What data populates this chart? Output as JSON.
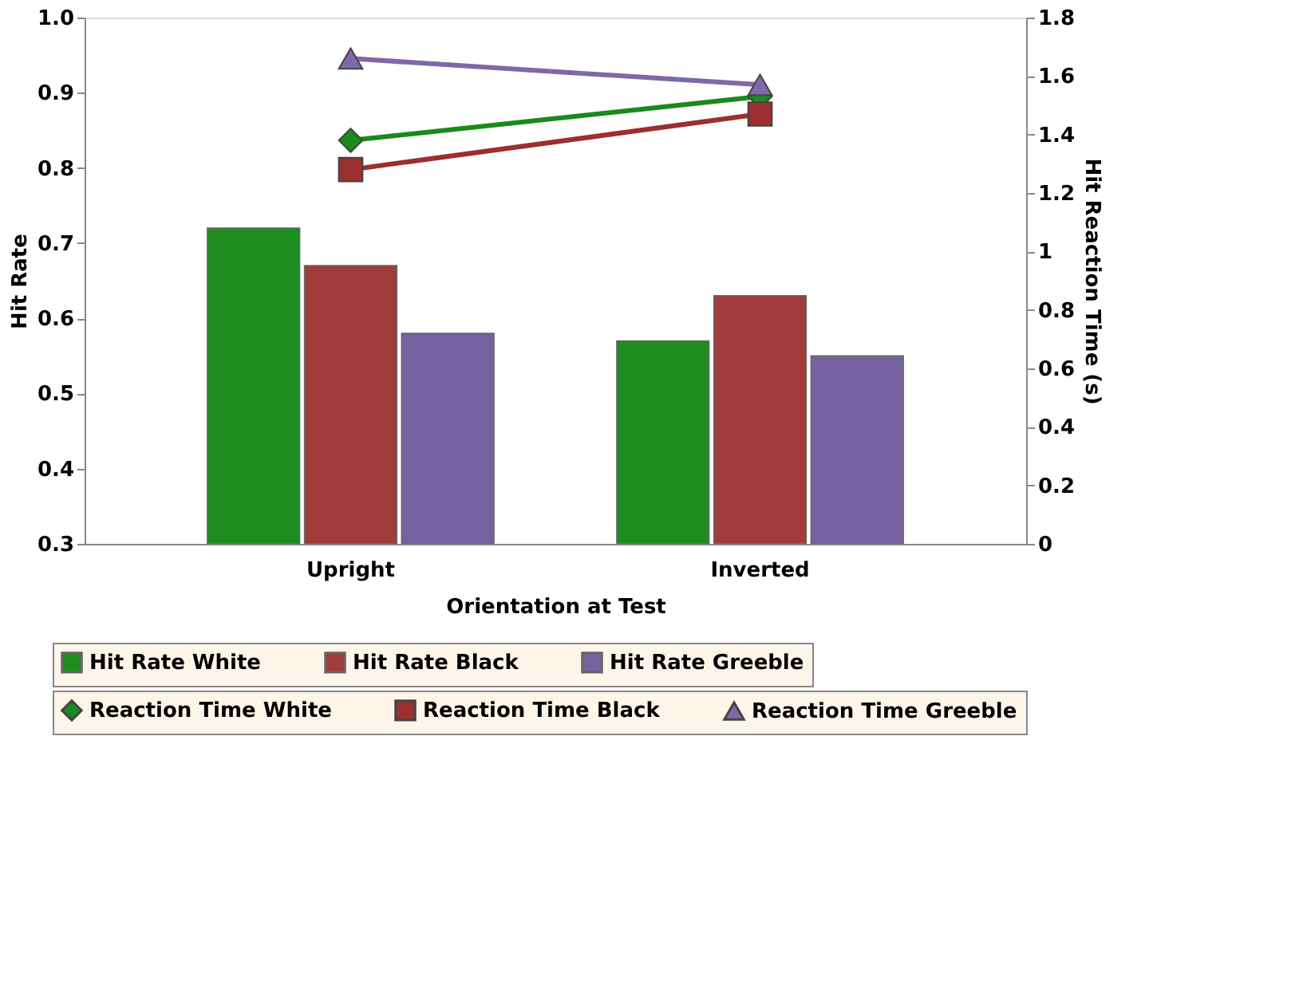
{
  "chart_data": {
    "type": "bar",
    "xlabel": "Orientation at Test",
    "ylabel": "Hit Rate",
    "y2label": "Hit Reaction Time (s)",
    "categories": [
      "Upright",
      "Inverted"
    ],
    "ylim": [
      0.3,
      1.0
    ],
    "yticks": [
      0.3,
      0.4,
      0.5,
      0.6,
      0.7,
      0.8,
      0.9,
      {
        "value": 1,
        "label": "1.0"
      }
    ],
    "y2lim": [
      0,
      1.8
    ],
    "y2ticks": [
      0,
      0.2,
      0.4,
      0.6,
      0.8,
      1,
      1.2,
      1.4,
      1.6,
      1.8
    ],
    "grid": false,
    "legend": "bottom",
    "series": [
      {
        "name": "Hit Rate White",
        "type": "bar",
        "color": "#1e8c1e",
        "values": [
          0.72,
          0.57
        ]
      },
      {
        "name": "Hit Rate Black",
        "type": "bar",
        "color": "#a23c3c",
        "values": [
          0.67,
          0.63
        ]
      },
      {
        "name": "Hit Rate Greeble",
        "type": "bar",
        "color": "#7462a0",
        "values": [
          0.58,
          0.55
        ]
      },
      {
        "name": "Reaction Time White",
        "type": "line",
        "axis": "y2",
        "marker": "diamond",
        "color": "#1a8a1a",
        "values": [
          1.38,
          1.53
        ]
      },
      {
        "name": "Reaction Time Black",
        "type": "line",
        "axis": "y2",
        "marker": "square",
        "color": "#9c2f2f",
        "values": [
          1.28,
          1.47
        ]
      },
      {
        "name": "Reaction Time Greeble",
        "type": "line",
        "axis": "y2",
        "marker": "triangle",
        "color": "#8068a8",
        "values": [
          1.66,
          1.57
        ]
      }
    ]
  }
}
